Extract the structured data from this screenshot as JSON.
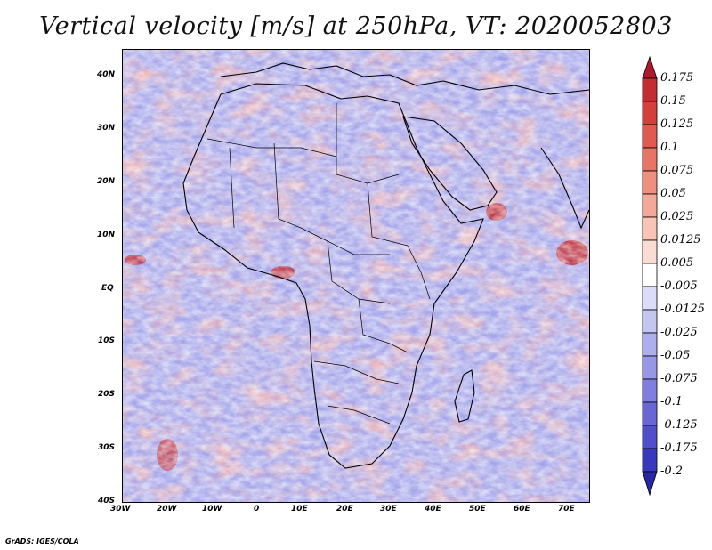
{
  "title": "Vertical velocity [m/s] at 250hPa, VT: 2020052803",
  "credit": "GrADS: IGES/COLA",
  "lat_labels": [
    "40N",
    "30N",
    "20N",
    "10N",
    "EQ",
    "10S",
    "20S",
    "30S",
    "40S"
  ],
  "lon_labels": [
    "30W",
    "20W",
    "10W",
    "0",
    "10E",
    "20E",
    "30E",
    "40E",
    "50E",
    "60E",
    "70E"
  ],
  "colorbar": {
    "levels": [
      "0.175",
      "0.15",
      "0.125",
      "0.1",
      "0.075",
      "0.05",
      "0.025",
      "0.0125",
      "0.005",
      "-0.005",
      "-0.0125",
      "-0.025",
      "-0.05",
      "-0.075",
      "-0.1",
      "-0.125",
      "-0.175",
      "-0.2"
    ],
    "colors": [
      "#b2182b",
      "#c42d30",
      "#d43f3a",
      "#e05a4f",
      "#e87465",
      "#ef8f7e",
      "#f4a998",
      "#f8c4b6",
      "#fbdcd2",
      "#ffffff",
      "#dcdcf8",
      "#c5c5f2",
      "#aeaeee",
      "#9797e8",
      "#7f7fe0",
      "#6767d6",
      "#4f4fcb",
      "#3737bf",
      "#2626a5"
    ]
  }
}
